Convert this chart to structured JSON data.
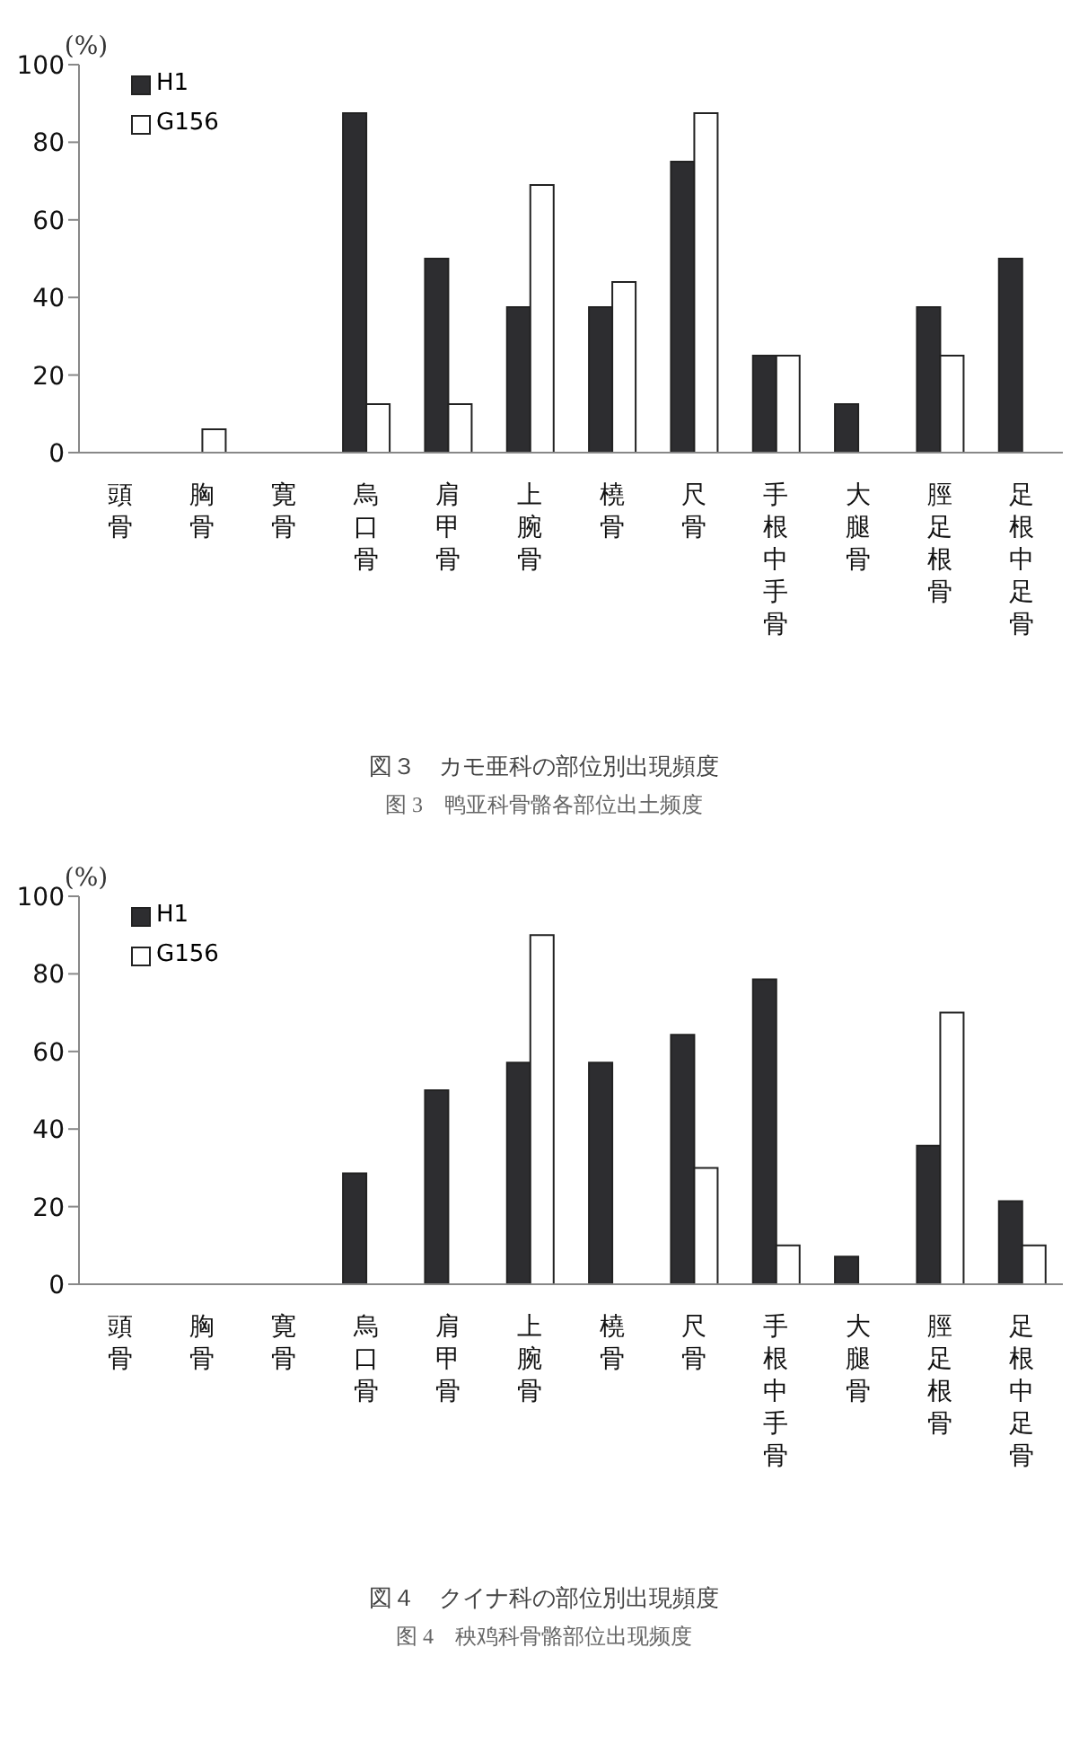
{
  "chart_data": [
    {
      "type": "bar",
      "title": "図３　カモ亜科の部位別出現頻度",
      "subtitle": "图 3　鸭亚科骨骼各部位出土频度",
      "ylabel": "(%)",
      "categories": [
        "頭骨",
        "胸骨",
        "寛骨",
        "烏口骨",
        "肩甲骨",
        "上腕骨",
        "橈骨",
        "尺骨",
        "手根中手骨",
        "大腿骨",
        "脛足根骨",
        "足根中足骨"
      ],
      "series": [
        {
          "name": "H1",
          "color": "#2d2d30",
          "values": [
            0,
            0,
            0,
            87.5,
            50,
            37.5,
            37.5,
            75,
            25,
            12.5,
            37.5,
            50
          ]
        },
        {
          "name": "G156",
          "color": "#ffffff",
          "values": [
            0,
            6,
            0,
            12.5,
            12.5,
            69,
            44,
            87.5,
            25,
            0,
            25,
            0
          ]
        }
      ],
      "ylim": [
        0,
        100
      ],
      "yticks": [
        0,
        20,
        40,
        60,
        80,
        100
      ],
      "grid": false,
      "legend": "top left"
    },
    {
      "type": "bar",
      "title": "図４　クイナ科の部位別出現頻度",
      "subtitle": "图 4　秧鸡科骨骼部位出现频度",
      "ylabel": "(%)",
      "categories": [
        "頭骨",
        "胸骨",
        "寛骨",
        "烏口骨",
        "肩甲骨",
        "上腕骨",
        "橈骨",
        "尺骨",
        "手根中手骨",
        "大腿骨",
        "脛足根骨",
        "足根中足骨"
      ],
      "series": [
        {
          "name": "H1",
          "color": "#2d2d30",
          "values": [
            0,
            0,
            0,
            28.6,
            50,
            57.1,
            57.1,
            64.3,
            78.6,
            7.1,
            35.7,
            21.4
          ]
        },
        {
          "name": "G156",
          "color": "#ffffff",
          "values": [
            0,
            0,
            0,
            0,
            0,
            90,
            0,
            30,
            10,
            0,
            70,
            10
          ]
        }
      ],
      "ylim": [
        0,
        100
      ],
      "yticks": [
        0,
        20,
        40,
        60,
        80,
        100
      ],
      "grid": false,
      "legend": "top left"
    }
  ]
}
